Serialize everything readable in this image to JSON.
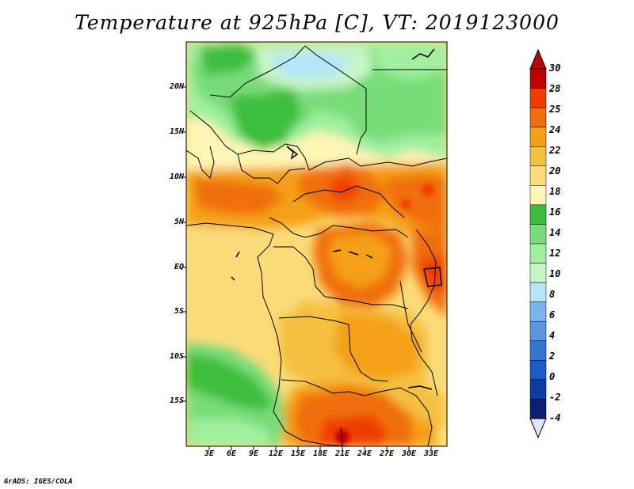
{
  "title": "Temperature at 925hPa [C], VT: 2019123000",
  "credit": "GrADS: IGES/COLA",
  "lat_ticks": [
    "20N",
    "15N",
    "10N",
    "5N",
    "EQ",
    "5S",
    "10S",
    "15S"
  ],
  "lon_ticks": [
    "3E",
    "6E",
    "9E",
    "12E",
    "15E",
    "18E",
    "21E",
    "24E",
    "27E",
    "30E",
    "33E"
  ],
  "colorbar": {
    "levels": [
      "30",
      "28",
      "25",
      "24",
      "22",
      "20",
      "18",
      "16",
      "14",
      "12",
      "10",
      "8",
      "6",
      "4",
      "2",
      "0",
      "-2",
      "-4"
    ],
    "colors": [
      "#c00000",
      "#f03c00",
      "#f06e0a",
      "#f5a014",
      "#f5c040",
      "#fbdc78",
      "#fff5b4",
      "#3cbe3c",
      "#78dc78",
      "#a0f0a0",
      "#c8f5c8",
      "#b4e6fa",
      "#7ab4ee",
      "#5896e0",
      "#3278d2",
      "#1e5ac8",
      "#0f3ca0",
      "#0a1e78",
      "#000050"
    ],
    "over_color": "#c00000",
    "under_color": "#e4e4ff"
  }
}
